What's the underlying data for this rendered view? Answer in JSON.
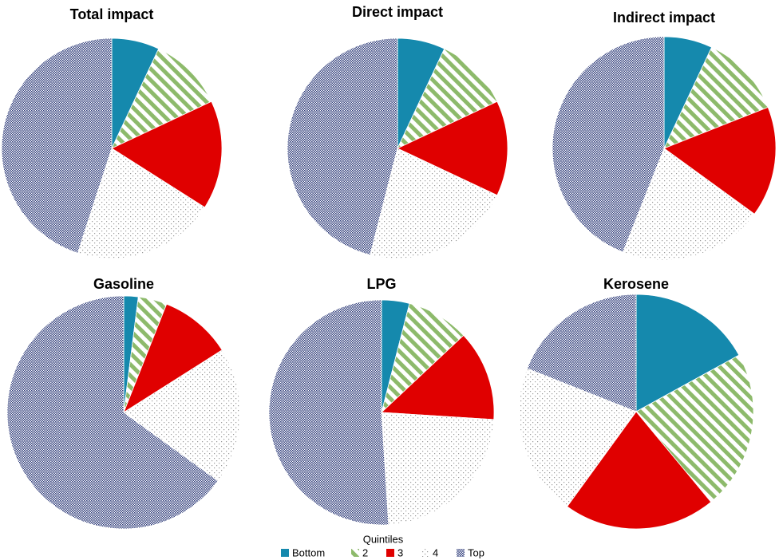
{
  "legend": {
    "title": "Quintiles"
  },
  "chart_data": [
    {
      "type": "pie",
      "title": "Total impact",
      "categories": [
        "Bottom",
        "2",
        "3",
        "4",
        "Top"
      ],
      "values": [
        7,
        11,
        16,
        21,
        45
      ],
      "colors": [
        "#1589ad",
        "#8dba6b",
        "#e00000",
        "#9a9a9a",
        "#35427e"
      ],
      "patterns": [
        "solid",
        "stripes",
        "solid",
        "dots",
        "checker"
      ]
    },
    {
      "type": "pie",
      "title": "Direct impact",
      "categories": [
        "Bottom",
        "2",
        "3",
        "4",
        "Top"
      ],
      "values": [
        7,
        11,
        14,
        22,
        46
      ],
      "colors": [
        "#1589ad",
        "#8dba6b",
        "#e00000",
        "#9a9a9a",
        "#35427e"
      ],
      "patterns": [
        "solid",
        "stripes",
        "solid",
        "dots",
        "checker"
      ]
    },
    {
      "type": "pie",
      "title": "Indirect impact",
      "categories": [
        "Bottom",
        "2",
        "3",
        "4",
        "Top"
      ],
      "values": [
        7,
        12,
        16,
        21,
        44
      ],
      "colors": [
        "#1589ad",
        "#8dba6b",
        "#e00000",
        "#9a9a9a",
        "#35427e"
      ],
      "patterns": [
        "solid",
        "stripes",
        "solid",
        "dots",
        "checker"
      ]
    },
    {
      "type": "pie",
      "title": "Gasoline",
      "categories": [
        "Bottom",
        "2",
        "3",
        "4",
        "Top"
      ],
      "values": [
        2,
        4,
        10,
        19,
        65
      ],
      "colors": [
        "#1589ad",
        "#8dba6b",
        "#e00000",
        "#9a9a9a",
        "#35427e"
      ],
      "patterns": [
        "solid",
        "stripes",
        "solid",
        "dots",
        "checker"
      ]
    },
    {
      "type": "pie",
      "title": "LPG",
      "categories": [
        "Bottom",
        "2",
        "3",
        "4",
        "Top"
      ],
      "values": [
        4,
        9,
        13,
        23,
        51
      ],
      "colors": [
        "#1589ad",
        "#8dba6b",
        "#e00000",
        "#9a9a9a",
        "#35427e"
      ],
      "patterns": [
        "solid",
        "stripes",
        "solid",
        "dots",
        "checker"
      ]
    },
    {
      "type": "pie",
      "title": "Kerosene",
      "categories": [
        "Bottom",
        "2",
        "3",
        "4",
        "Top"
      ],
      "values": [
        17,
        22,
        21,
        21,
        19
      ],
      "colors": [
        "#1589ad",
        "#8dba6b",
        "#e00000",
        "#9a9a9a",
        "#35427e"
      ],
      "patterns": [
        "solid",
        "stripes",
        "solid",
        "dots",
        "checker"
      ]
    }
  ]
}
